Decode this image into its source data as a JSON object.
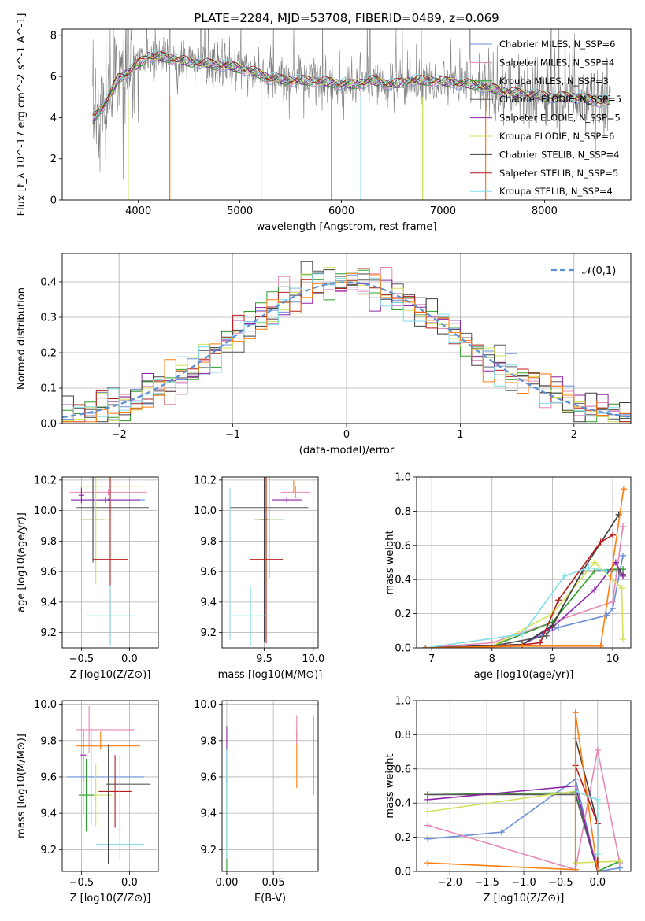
{
  "chart_data": [
    {
      "id": "spectrum",
      "type": "line",
      "title": "PLATE=2284, MJD=53708, FIBERID=0489, z=0.069",
      "xlabel": "wavelength [Angstrom, rest frame]",
      "ylabel": "Flux [f_λ 10^-17 erg cm^-2 s^-1 A^-1]",
      "xlim": [
        3250,
        8850
      ],
      "ylim": [
        0,
        8.3
      ],
      "xticks": [
        4000,
        5000,
        6000,
        7000,
        8000
      ],
      "yticks": [
        0,
        2,
        4,
        6,
        8
      ],
      "grid": false,
      "legend_position": "top-right",
      "data_color": "#808080",
      "model_continuum": {
        "x": [
          3550,
          3700,
          3800,
          3900,
          4000,
          4100,
          4300,
          4500,
          4700,
          4900,
          5100,
          5300,
          5500,
          5700,
          5900,
          6100,
          6300,
          6500,
          6700,
          6900,
          7100,
          7300,
          7500,
          7700,
          7900,
          8100,
          8300,
          8500,
          8650
        ],
        "y": [
          3.9,
          4.9,
          5.9,
          6.2,
          6.6,
          7.0,
          6.9,
          6.7,
          6.6,
          6.5,
          6.3,
          5.9,
          5.8,
          5.8,
          5.7,
          5.6,
          5.8,
          5.6,
          5.8,
          5.8,
          5.7,
          5.6,
          5.4,
          5.2,
          5.1,
          5.0,
          5.0,
          4.8,
          4.8
        ]
      },
      "series": [
        {
          "name": "Chabrier MILES, N_SSP=6",
          "color": "#6a8fd8"
        },
        {
          "name": "Salpeter MILES, N_SSP=4",
          "color": "#e688b8"
        },
        {
          "name": "Kroupa MILES, N_SSP=3",
          "color": "#2ca02c"
        },
        {
          "name": "Chabrier ELODIE, N_SSP=5",
          "color": "#595959"
        },
        {
          "name": "Salpeter ELODIE, N_SSP=5",
          "color": "#8e24aa"
        },
        {
          "name": "Kroupa ELODIE, N_SSP=6",
          "color": "#d4e157"
        },
        {
          "name": "Chabrier STELIB, N_SSP=4",
          "color": "#404040"
        },
        {
          "name": "Salpeter STELIB, N_SSP=5",
          "color": "#b71c1c"
        },
        {
          "name": "Kroupa STELIB, N_SSP=4",
          "color": "#80deea"
        }
      ]
    },
    {
      "id": "residuals",
      "type": "line",
      "xlabel": "(data-model)/error",
      "ylabel": "Normed distribution",
      "xlim": [
        -2.5,
        2.5
      ],
      "ylim": [
        0,
        0.48
      ],
      "xticks": [
        -2,
        -1,
        0,
        1,
        2
      ],
      "yticks": [
        0.0,
        0.1,
        0.2,
        0.3,
        0.4
      ],
      "grid": true,
      "legend_position": "top-right",
      "reference": {
        "name": "𝒩(0,1)",
        "color": "#5b8fd6",
        "style": "dashed"
      },
      "bins": {
        "start": -2.5,
        "width": 0.1,
        "count": 50
      },
      "colors": [
        "#6a8fd8",
        "#e688b8",
        "#2ca02c",
        "#595959",
        "#8e24aa",
        "#d4e157",
        "#404040",
        "#b71c1c",
        "#80deea",
        "#ff7f0e"
      ]
    },
    {
      "id": "age-vs-Z",
      "type": "scatter",
      "xlabel": "Z [log10(Z/Z⊙)]",
      "ylabel": "age  [log10(age/yr)]",
      "xlim": [
        -0.7,
        0.3
      ],
      "ylim": [
        9.1,
        10.22
      ],
      "xticks": [
        -0.5,
        0.0
      ],
      "yticks": [
        9.2,
        9.4,
        9.6,
        9.8,
        10.0,
        10.2
      ],
      "grid": true,
      "points": [
        {
          "x": -0.18,
          "y": 10.16,
          "xerr": 0.36,
          "yerr": 0.0,
          "color": "#ff7f0e"
        },
        {
          "x": -0.22,
          "y": 10.12,
          "xerr": 0.4,
          "yerr": 0.02,
          "color": "#e688b8"
        },
        {
          "x": -0.22,
          "y": 10.07,
          "xerr": 0.38,
          "yerr": 0.01,
          "color": "#6a8fd8"
        },
        {
          "x": -0.25,
          "y": 10.07,
          "xerr": 0.36,
          "yerr": 0.02,
          "color": "#8e24aa"
        },
        {
          "x": -0.18,
          "y": 10.02,
          "xerr": 0.38,
          "yerr": 0.0,
          "color": "#595959"
        },
        {
          "x": -0.38,
          "y": 9.94,
          "xerr": 0.12,
          "yerr": 0.28,
          "color": "#404040"
        },
        {
          "x": -0.35,
          "y": 9.94,
          "xerr": 0.18,
          "yerr": 0.42,
          "color": "#d4e157"
        },
        {
          "x": -0.2,
          "y": 9.68,
          "xerr": 0.18,
          "yerr": 0.55,
          "color": "#b71c1c"
        },
        {
          "x": -0.2,
          "y": 9.31,
          "xerr": 0.26,
          "yerr": 0.2,
          "color": "#80deea"
        },
        {
          "x": -0.5,
          "y": 10.1,
          "xerr": 0.03,
          "yerr": 0.05,
          "color": "#8e24aa"
        }
      ]
    },
    {
      "id": "age-vs-mass",
      "type": "scatter",
      "xlabel": "mass [log10(M/M⊙)]",
      "ylabel": "",
      "xlim": [
        9.07,
        10.05
      ],
      "ylim": [
        9.1,
        10.22
      ],
      "xticks": [
        9.5,
        10.0
      ],
      "yticks": [
        9.2,
        9.4,
        9.6,
        9.8,
        10.0,
        10.2
      ],
      "grid": true,
      "points": [
        {
          "x": 9.82,
          "y": 10.12,
          "xerr": 0.15,
          "yerr": 0.04,
          "color": "#e688b8"
        },
        {
          "x": 9.8,
          "y": 10.16,
          "xerr": 0.0,
          "yerr": 0.04,
          "color": "#ff7f0e"
        },
        {
          "x": 9.73,
          "y": 10.07,
          "xerr": 0.15,
          "yerr": 0.02,
          "color": "#8e24aa"
        },
        {
          "x": 9.7,
          "y": 10.07,
          "xerr": 0.0,
          "yerr": 0.04,
          "color": "#6a8fd8"
        },
        {
          "x": 9.55,
          "y": 10.02,
          "xerr": 0.4,
          "yerr": 0.0,
          "color": "#595959"
        },
        {
          "x": 9.55,
          "y": 9.94,
          "xerr": 0.15,
          "yerr": 0.38,
          "color": "#2ca02c"
        },
        {
          "x": 9.52,
          "y": 9.94,
          "xerr": 0.1,
          "yerr": 0.42,
          "color": "#d4e157"
        },
        {
          "x": 9.5,
          "y": 9.94,
          "xerr": 0.05,
          "yerr": 0.8,
          "color": "#404040"
        },
        {
          "x": 9.52,
          "y": 9.68,
          "xerr": 0.17,
          "yerr": 0.55,
          "color": "#b71c1c"
        },
        {
          "x": 9.36,
          "y": 9.31,
          "xerr": 0.2,
          "yerr": 0.2,
          "color": "#80deea"
        },
        {
          "x": 9.15,
          "y": 9.65,
          "xerr": 0.0,
          "yerr": 0.5,
          "color": "#80deea"
        }
      ]
    },
    {
      "id": "massweight-vs-age",
      "type": "line",
      "xlabel": "age  [log10(age/yr)]",
      "ylabel": "mass weight",
      "xlim": [
        6.75,
        10.3
      ],
      "ylim": [
        0,
        1.0
      ],
      "xticks": [
        7,
        8,
        9,
        10
      ],
      "yticks": [
        0.0,
        0.2,
        0.4,
        0.6,
        0.8,
        1.0
      ],
      "grid": true,
      "series": [
        {
          "color": "#6a8fd8",
          "x": [
            6.9,
            8.5,
            9.1,
            9.9,
            10.0,
            10.17
          ],
          "y": [
            0.0,
            0.02,
            0.12,
            0.19,
            0.23,
            0.54
          ]
        },
        {
          "color": "#e688b8",
          "x": [
            6.9,
            8.0,
            9.0,
            10.0,
            10.17
          ],
          "y": [
            0.0,
            0.03,
            0.15,
            0.27,
            0.71
          ]
        },
        {
          "color": "#2ca02c",
          "x": [
            6.9,
            8.0,
            9.0,
            9.7,
            10.0,
            10.17
          ],
          "y": [
            0.0,
            0.01,
            0.15,
            0.45,
            0.46,
            0.46
          ]
        },
        {
          "color": "#595959",
          "x": [
            6.9,
            8.0,
            8.9,
            9.5,
            10.1,
            10.17
          ],
          "y": [
            0.0,
            0.01,
            0.07,
            0.45,
            0.45,
            0.43
          ]
        },
        {
          "color": "#8e24aa",
          "x": [
            6.9,
            8.5,
            9.0,
            9.7,
            10.05,
            10.17
          ],
          "y": [
            0.0,
            0.02,
            0.12,
            0.34,
            0.5,
            0.42
          ]
        },
        {
          "color": "#d4e157",
          "x": [
            6.9,
            8.0,
            9.0,
            9.7,
            10.15,
            10.17
          ],
          "y": [
            0.0,
            0.01,
            0.2,
            0.5,
            0.35,
            0.05
          ]
        },
        {
          "color": "#404040",
          "x": [
            6.9,
            8.5,
            9.0,
            9.5,
            10.1
          ],
          "y": [
            0.0,
            0.02,
            0.13,
            0.45,
            0.78
          ]
        },
        {
          "color": "#b71c1c",
          "x": [
            6.9,
            8.3,
            8.8,
            9.1,
            9.8,
            10.0
          ],
          "y": [
            0.0,
            0.01,
            0.03,
            0.28,
            0.62,
            0.66
          ]
        },
        {
          "color": "#80deea",
          "x": [
            6.9,
            8.5,
            9.2,
            9.6,
            9.9
          ],
          "y": [
            0.0,
            0.08,
            0.42,
            0.47,
            0.45
          ]
        },
        {
          "color": "#ff7f0e",
          "x": [
            6.9,
            8.5,
            9.8,
            10.18
          ],
          "y": [
            0.0,
            0.01,
            0.01,
            0.93
          ]
        }
      ]
    },
    {
      "id": "mass-vs-Z",
      "type": "scatter",
      "xlabel": "Z [log10(Z/Z⊙)]",
      "ylabel": "mass [log10(M/M⊙)]",
      "xlim": [
        -0.7,
        0.3
      ],
      "ylim": [
        9.08,
        10.02
      ],
      "xticks": [
        -0.5,
        0.0
      ],
      "yticks": [
        9.2,
        9.4,
        9.6,
        9.8,
        10.0
      ],
      "grid": true,
      "points": [
        {
          "x": -0.25,
          "y": 9.86,
          "xerr": 0.3,
          "yerr": 0.0,
          "color": "#e688b8"
        },
        {
          "x": -0.42,
          "y": 9.86,
          "xerr": 0.0,
          "yerr": 0.13,
          "color": "#e688b8"
        },
        {
          "x": -0.22,
          "y": 9.77,
          "xerr": 0.33,
          "yerr": 0.0,
          "color": "#ff7f0e"
        },
        {
          "x": -0.3,
          "y": 9.8,
          "xerr": 0.0,
          "yerr": 0.05,
          "color": "#ff7f0e"
        },
        {
          "x": -0.48,
          "y": 9.72,
          "xerr": 0.03,
          "yerr": 0.14,
          "color": "#8e24aa"
        },
        {
          "x": -0.25,
          "y": 9.6,
          "xerr": 0.4,
          "yerr": 0.0,
          "color": "#6a8fd8"
        },
        {
          "x": -0.48,
          "y": 9.6,
          "xerr": 0.03,
          "yerr": 0.2,
          "color": "#6a8fd8"
        },
        {
          "x": 0.0,
          "y": 9.56,
          "xerr": 0.22,
          "yerr": 0.0,
          "color": "#595959"
        },
        {
          "x": -0.22,
          "y": 9.56,
          "xerr": 0.02,
          "yerr": 0.22,
          "color": "#595959"
        },
        {
          "x": -0.35,
          "y": 9.5,
          "xerr": 0.17,
          "yerr": 0.17,
          "color": "#d4e157"
        },
        {
          "x": -0.45,
          "y": 9.5,
          "xerr": 0.08,
          "yerr": 0.2,
          "color": "#2ca02c"
        },
        {
          "x": -0.4,
          "y": 9.6,
          "xerr": 0.0,
          "yerr": 0.26,
          "color": "#404040"
        },
        {
          "x": -0.15,
          "y": 9.52,
          "xerr": 0.17,
          "yerr": 0.2,
          "color": "#b71c1c"
        },
        {
          "x": -0.1,
          "y": 9.23,
          "xerr": 0.25,
          "yerr": 0.0,
          "color": "#80deea"
        },
        {
          "x": -0.1,
          "y": 9.43,
          "xerr": 0.0,
          "yerr": 0.29,
          "color": "#80deea"
        },
        {
          "x": -0.22,
          "y": 9.32,
          "xerr": 0.0,
          "yerr": 0.2,
          "color": "#404040"
        }
      ]
    },
    {
      "id": "mass-vs-EBV",
      "type": "scatter",
      "xlabel": "E(B-V)",
      "ylabel": "",
      "xlim": [
        -0.005,
        0.098
      ],
      "ylim": [
        9.08,
        10.02
      ],
      "xticks": [
        0.0,
        0.05
      ],
      "yticks": [
        9.2,
        9.4,
        9.6,
        9.8,
        10.0
      ],
      "grid": true,
      "points": [
        {
          "x": 0.0,
          "y": 9.72,
          "yerr": 0.16,
          "color": "#8e24aa"
        },
        {
          "x": 0.0,
          "y": 9.4,
          "yerr": 0.32,
          "color": "#2ca02c"
        },
        {
          "x": 0.0,
          "y": 9.45,
          "yerr": 0.3,
          "color": "#80deea"
        },
        {
          "x": 0.075,
          "y": 9.7,
          "yerr": 0.16,
          "color": "#ff7f0e"
        },
        {
          "x": 0.075,
          "y": 9.86,
          "yerr": 0.08,
          "color": "#e688b8"
        },
        {
          "x": 0.093,
          "y": 9.72,
          "yerr": 0.22,
          "color": "#6a8fd8"
        }
      ]
    },
    {
      "id": "massweight-vs-Z",
      "type": "line",
      "xlabel": "Z [log10(Z/Z⊙)]",
      "ylabel": "mass weight",
      "xlim": [
        -2.45,
        0.45
      ],
      "ylim": [
        0,
        1.0
      ],
      "xticks": [
        -2.0,
        -1.5,
        -1.0,
        -0.5,
        0.0
      ],
      "yticks": [
        0.0,
        0.2,
        0.4,
        0.6,
        0.8,
        1.0
      ],
      "grid": true,
      "series": [
        {
          "color": "#6a8fd8",
          "x": [
            -2.3,
            -1.3,
            -0.3,
            0.0,
            0.3
          ],
          "y": [
            0.19,
            0.23,
            0.54,
            0.0,
            0.02
          ]
        },
        {
          "color": "#e688b8",
          "x": [
            -2.3,
            -0.3,
            0.0,
            0.3
          ],
          "y": [
            0.27,
            0.01,
            0.71,
            0.05
          ]
        },
        {
          "color": "#2ca02c",
          "x": [
            -2.3,
            -0.3,
            0.0,
            0.3
          ],
          "y": [
            0.45,
            0.46,
            0.0,
            0.06
          ]
        },
        {
          "color": "#595959",
          "x": [
            -2.3,
            -0.3,
            0.0
          ],
          "y": [
            0.45,
            0.45,
            0.0
          ]
        },
        {
          "color": "#8e24aa",
          "x": [
            -2.3,
            -0.3,
            0.0
          ],
          "y": [
            0.42,
            0.5,
            0.0
          ]
        },
        {
          "color": "#d4e157",
          "x": [
            -2.3,
            -0.3,
            -0.3,
            0.3
          ],
          "y": [
            0.35,
            0.47,
            0.05,
            0.06
          ]
        },
        {
          "color": "#404040",
          "x": [
            -0.3,
            0.0,
            0.0
          ],
          "y": [
            0.78,
            0.28,
            0.0
          ]
        },
        {
          "color": "#b71c1c",
          "x": [
            -0.3,
            0.0,
            0.0
          ],
          "y": [
            0.62,
            0.28,
            0.0
          ]
        },
        {
          "color": "#80deea",
          "x": [
            -0.3,
            0.0,
            0.0
          ],
          "y": [
            0.47,
            0.42,
            0.1
          ]
        },
        {
          "color": "#ff7f0e",
          "x": [
            -2.3,
            -0.3,
            -0.3,
            0.0
          ],
          "y": [
            0.05,
            0.01,
            0.93,
            0.0
          ]
        }
      ]
    }
  ]
}
